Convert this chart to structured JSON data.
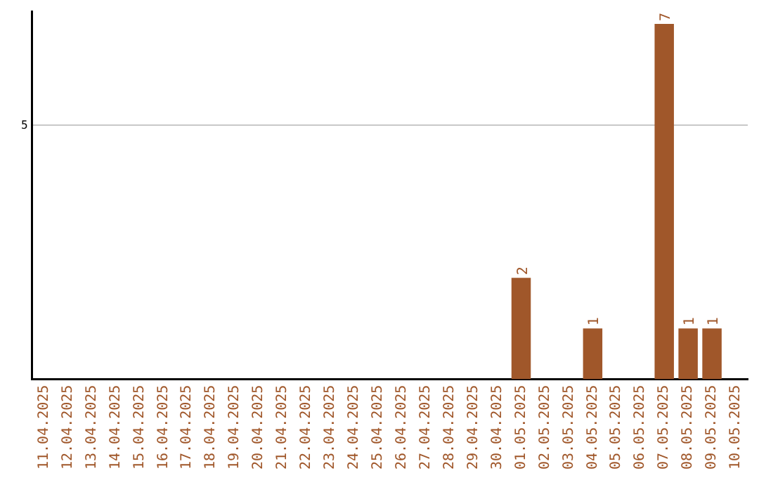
{
  "chart_data": {
    "type": "bar",
    "categories": [
      "11.04.2025",
      "12.04.2025",
      "13.04.2025",
      "14.04.2025",
      "15.04.2025",
      "16.04.2025",
      "17.04.2025",
      "18.04.2025",
      "19.04.2025",
      "20.04.2025",
      "21.04.2025",
      "22.04.2025",
      "23.04.2025",
      "24.04.2025",
      "25.04.2025",
      "26.04.2025",
      "27.04.2025",
      "28.04.2025",
      "29.04.2025",
      "30.04.2025",
      "01.05.2025",
      "02.05.2025",
      "03.05.2025",
      "04.05.2025",
      "05.05.2025",
      "06.05.2025",
      "07.05.2025",
      "08.05.2025",
      "09.05.2025",
      "10.05.2025"
    ],
    "values": [
      null,
      null,
      null,
      null,
      null,
      null,
      null,
      null,
      null,
      null,
      null,
      null,
      null,
      null,
      null,
      null,
      null,
      null,
      null,
      null,
      2,
      null,
      null,
      1,
      null,
      null,
      7,
      1,
      1,
      null
    ],
    "data_labels": true,
    "color": "#a0572a",
    "ylim": [
      0,
      7.25
    ],
    "yticks": [
      5
    ],
    "grid": "y",
    "legend": false
  }
}
